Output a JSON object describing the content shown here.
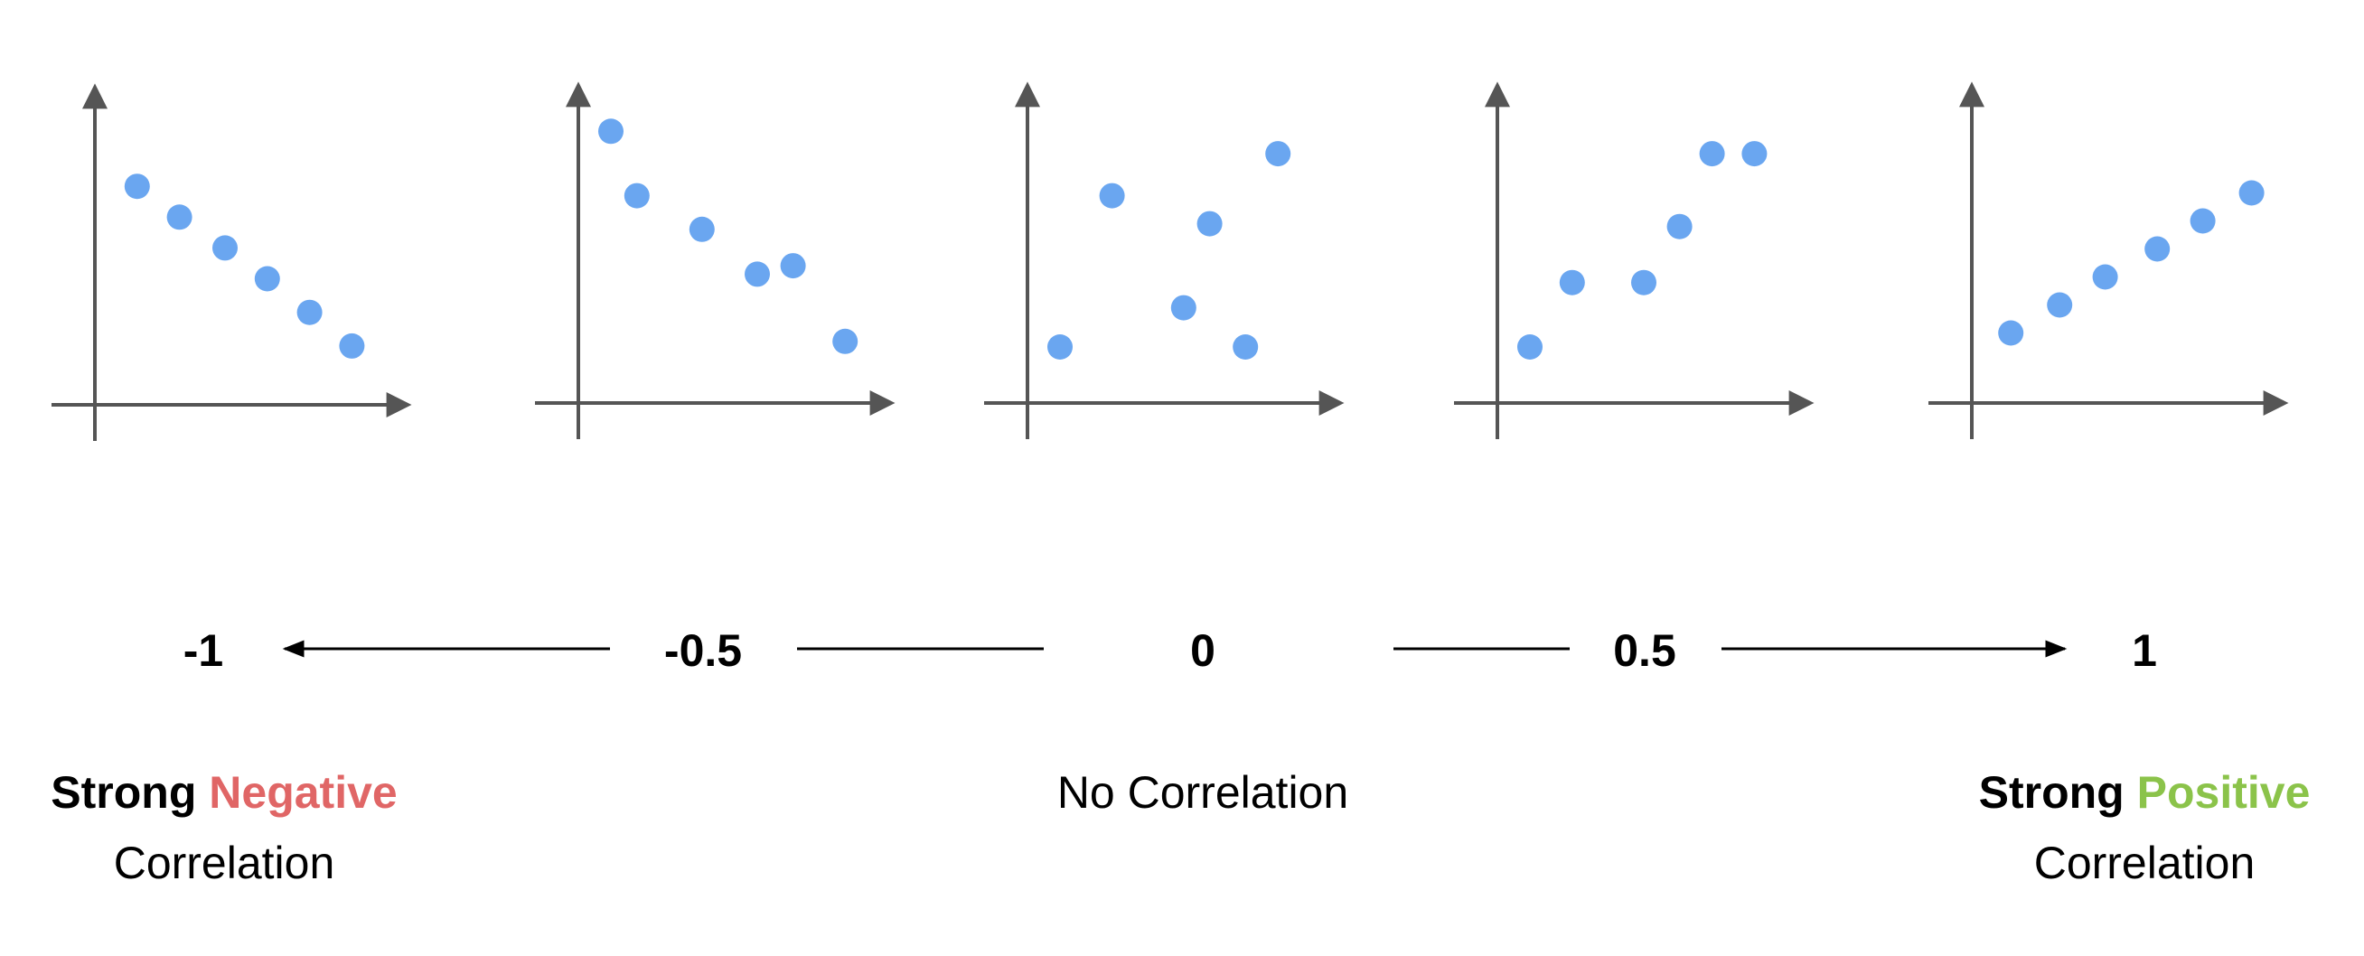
{
  "colors": {
    "axis": "#555555",
    "point": "#6aa6f0",
    "arrow": "#000000",
    "negative": "#e06666",
    "positive": "#8bc34a"
  },
  "scale": {
    "labels": [
      "-1",
      "-0.5",
      "0",
      "0.5",
      "1"
    ]
  },
  "plots": [
    {
      "correlation": -1,
      "points": [
        [
          0.13,
          0.78
        ],
        [
          0.26,
          0.67
        ],
        [
          0.4,
          0.56
        ],
        [
          0.53,
          0.45
        ],
        [
          0.66,
          0.33
        ],
        [
          0.79,
          0.21
        ]
      ]
    },
    {
      "correlation": -0.5,
      "points": [
        [
          0.1,
          0.97
        ],
        [
          0.18,
          0.74
        ],
        [
          0.38,
          0.62
        ],
        [
          0.55,
          0.46
        ],
        [
          0.66,
          0.49
        ],
        [
          0.82,
          0.22
        ]
      ]
    },
    {
      "correlation": 0,
      "points": [
        [
          0.1,
          0.2
        ],
        [
          0.26,
          0.74
        ],
        [
          0.48,
          0.34
        ],
        [
          0.56,
          0.64
        ],
        [
          0.67,
          0.2
        ],
        [
          0.77,
          0.89
        ]
      ]
    },
    {
      "correlation": 0.5,
      "points": [
        [
          0.1,
          0.2
        ],
        [
          0.23,
          0.43
        ],
        [
          0.45,
          0.43
        ],
        [
          0.56,
          0.63
        ],
        [
          0.66,
          0.89
        ],
        [
          0.79,
          0.89
        ]
      ]
    },
    {
      "correlation": 1,
      "points": [
        [
          0.12,
          0.25
        ],
        [
          0.27,
          0.35
        ],
        [
          0.41,
          0.45
        ],
        [
          0.57,
          0.55
        ],
        [
          0.71,
          0.65
        ],
        [
          0.86,
          0.75
        ]
      ]
    }
  ],
  "captions": {
    "left": {
      "strong": "Strong",
      "word": "Negative",
      "line2": "Correlation"
    },
    "center": {
      "text": "No Correlation"
    },
    "right": {
      "strong": "Strong",
      "word": "Positive",
      "line2": "Correlation"
    }
  }
}
